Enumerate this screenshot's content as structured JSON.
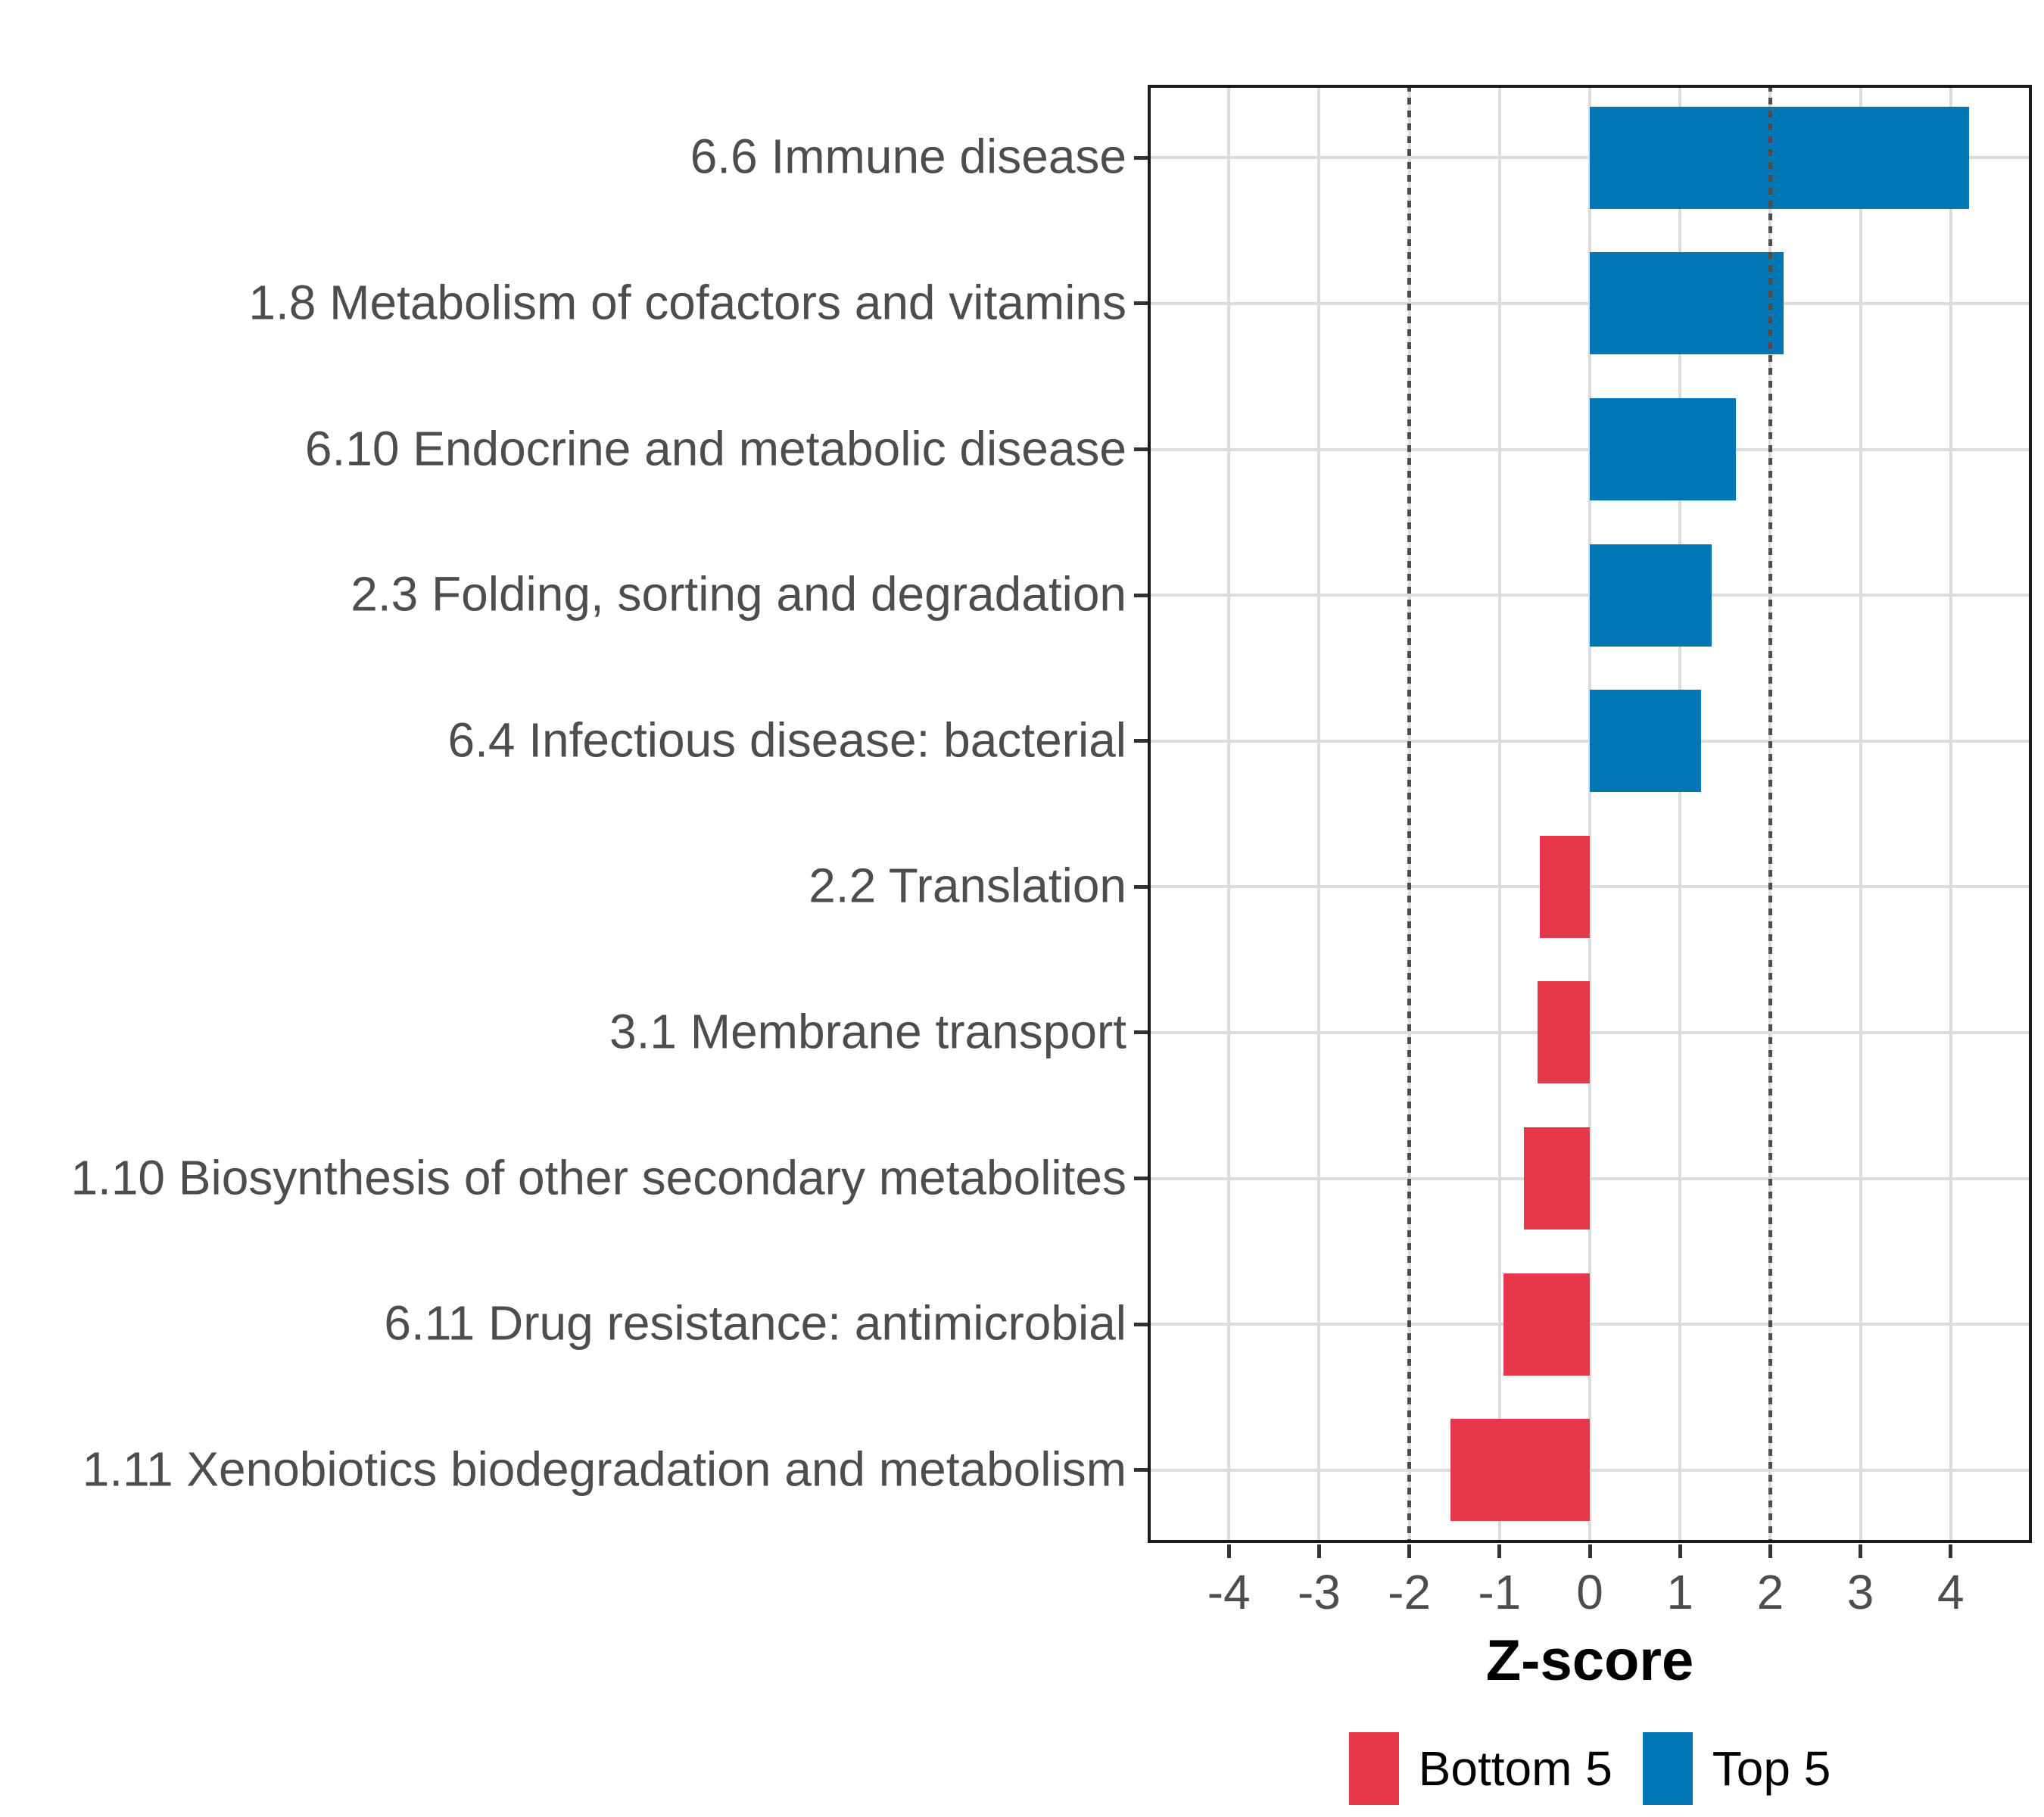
{
  "chart_data": {
    "type": "bar",
    "orientation": "horizontal",
    "xlabel": "Z-score",
    "categories": [
      "6.6 Immune disease",
      "1.8 Metabolism of cofactors and vitamins",
      "6.10 Endocrine and metabolic disease",
      "2.3 Folding, sorting and degradation",
      "6.4 Infectious disease: bacterial",
      "2.2 Translation",
      "3.1 Membrane transport",
      "1.10 Biosynthesis of other secondary metabolites",
      "6.11 Drug resistance: antimicrobial",
      "1.11 Xenobiotics biodegradation and metabolism"
    ],
    "values": [
      4.2,
      2.15,
      1.62,
      1.35,
      1.23,
      -0.55,
      -0.58,
      -0.73,
      -0.96,
      -1.54
    ],
    "groups": [
      "Top 5",
      "Top 5",
      "Top 5",
      "Top 5",
      "Top 5",
      "Bottom 5",
      "Bottom 5",
      "Bottom 5",
      "Bottom 5",
      "Bottom 5"
    ],
    "group_colors": {
      "Top 5": "#0077B4",
      "Bottom 5": "#E53848"
    },
    "x_ticks": [
      -4,
      -3,
      -2,
      -1,
      0,
      1,
      2,
      3,
      4
    ],
    "xlim": [
      -4.9,
      4.9
    ],
    "reference_lines": [
      -2,
      2
    ],
    "grid": "major vertical gridlines at integers, horizontal gridline per category, no minor grid",
    "colors": {
      "grid": "#DCDCDC",
      "reference_line": "#4D4D4D",
      "axis_text": "#4D4D4D",
      "panel_border": "#1a1a1a",
      "tick_mark": "#333333"
    },
    "legend": {
      "position": "bottom",
      "entries": [
        {
          "label": "Bottom 5",
          "color": "#E53848"
        },
        {
          "label": "Top 5",
          "color": "#0077B4"
        }
      ]
    }
  }
}
